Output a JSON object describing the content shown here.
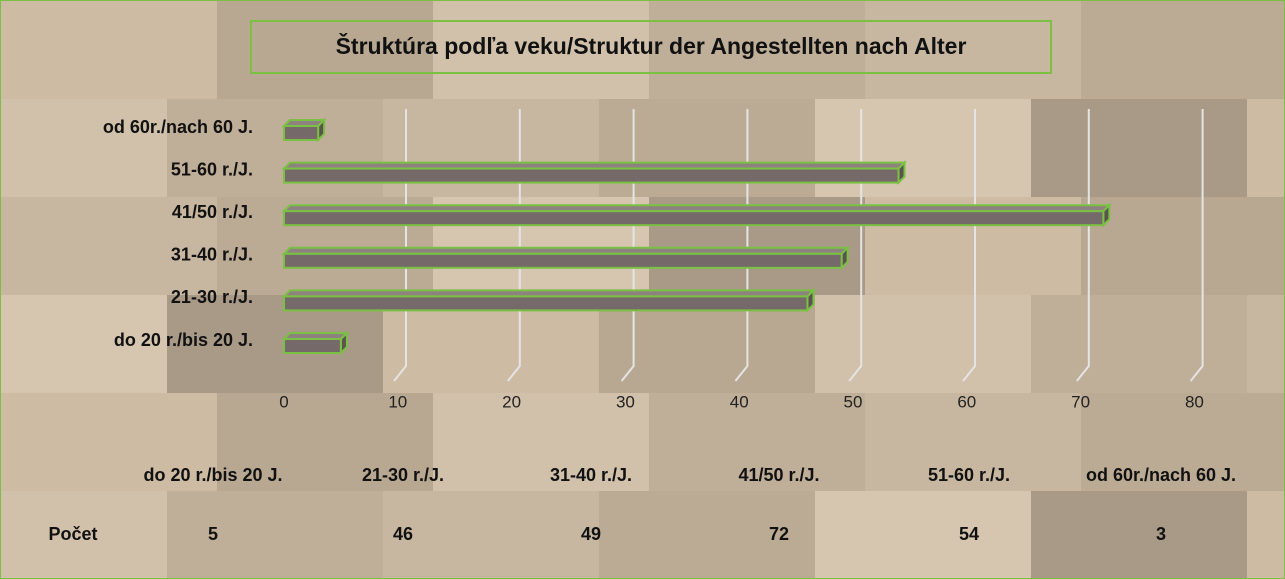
{
  "chart_data": {
    "type": "bar",
    "orientation": "horizontal",
    "title": "Štruktúra podľa veku/Struktur der Angestellten nach Alter",
    "categories": [
      "do 20 r./bis 20 J.",
      "21-30 r./J.",
      "31-40 r./J.",
      "41/50 r./J.",
      "51-60 r./J.",
      "od 60r./nach 60 J."
    ],
    "series": [
      {
        "name": "Počet",
        "color": "#75696a",
        "values": [
          5,
          46,
          49,
          72,
          54,
          3
        ]
      }
    ],
    "xlim": [
      0,
      80
    ],
    "xticks": [
      0,
      10,
      20,
      30,
      40,
      50,
      60,
      70,
      80
    ],
    "grid": true,
    "data_table": true
  }
}
